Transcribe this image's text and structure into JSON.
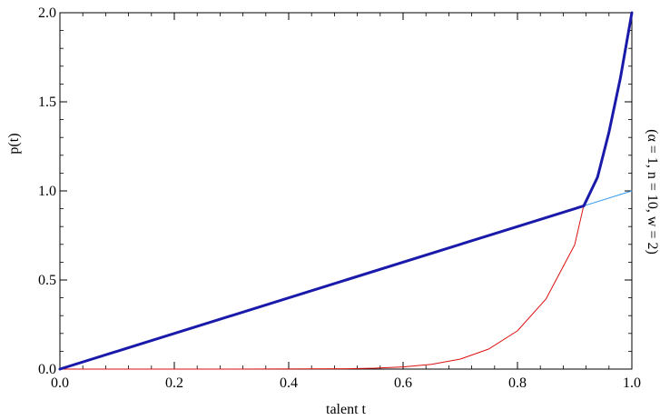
{
  "chart_data": {
    "type": "line",
    "title": "",
    "xlabel": "talent t",
    "ylabel": "p(t)",
    "annotation": "(α = 1, n = 10, w = 2)",
    "xlim": [
      0,
      1
    ],
    "ylim": [
      0,
      2
    ],
    "x_ticks": [
      "0.0",
      "0.2",
      "0.4",
      "0.6",
      "0.8",
      "1.0"
    ],
    "y_ticks": [
      "0.0",
      "0.5",
      "1.0",
      "1.5",
      "2.0"
    ],
    "grid": false,
    "series": [
      {
        "color": "#3399ee",
        "points": [
          [
            0,
            0
          ],
          [
            1,
            1
          ]
        ]
      },
      {
        "color": "#dd1111",
        "points": [
          [
            0,
            0
          ],
          [
            0.3,
            0
          ],
          [
            0.5,
            0.002
          ],
          [
            0.55,
            0.005
          ],
          [
            0.6,
            0.012
          ],
          [
            0.65,
            0.027
          ],
          [
            0.7,
            0.056
          ],
          [
            0.75,
            0.113
          ],
          [
            0.8,
            0.215
          ],
          [
            0.85,
            0.394
          ],
          [
            0.9,
            0.697
          ],
          [
            0.916,
            0.92
          ]
        ]
      },
      {
        "color": "#1a1aaa",
        "points": [
          [
            0,
            0
          ],
          [
            0.916,
            0.916
          ],
          [
            0.94,
            1.077
          ],
          [
            0.96,
            1.33
          ],
          [
            0.98,
            1.634
          ],
          [
            1.0,
            2.0
          ]
        ]
      }
    ]
  }
}
